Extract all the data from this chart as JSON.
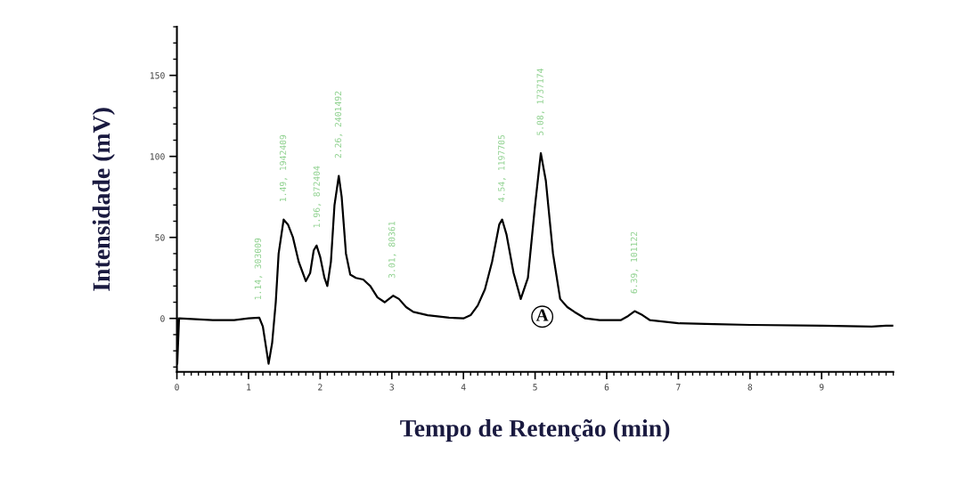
{
  "chart_data": {
    "type": "line",
    "xlabel": "Tempo de Retenção (min)",
    "ylabel": "Intensidade (mV)",
    "xlim": [
      0,
      10
    ],
    "xticks": [
      0,
      1,
      2,
      3,
      4,
      5,
      6,
      7,
      8,
      9
    ],
    "ylim": [
      -33,
      180
    ],
    "yticks": [
      0,
      50,
      100,
      150
    ],
    "grid": false,
    "marker": "none",
    "line_style": "solid",
    "series": [
      {
        "color": "#000000",
        "x": [
          0.0,
          0.005,
          0.03,
          0.5,
          0.8,
          1.0,
          1.15,
          1.2,
          1.28,
          1.33,
          1.38,
          1.42,
          1.49,
          1.55,
          1.62,
          1.7,
          1.8,
          1.86,
          1.91,
          1.95,
          2.0,
          2.06,
          2.1,
          2.15,
          2.2,
          2.26,
          2.3,
          2.36,
          2.42,
          2.5,
          2.6,
          2.7,
          2.8,
          2.9,
          3.02,
          3.1,
          3.2,
          3.3,
          3.5,
          3.8,
          4.0,
          4.1,
          4.2,
          4.3,
          4.4,
          4.5,
          4.54,
          4.6,
          4.7,
          4.8,
          4.9,
          5.0,
          5.08,
          5.15,
          5.25,
          5.35,
          5.45,
          5.55,
          5.7,
          5.9,
          6.2,
          6.3,
          6.39,
          6.5,
          6.6,
          6.8,
          7.0,
          7.5,
          8.0,
          9.0,
          9.7,
          9.9,
          10.0
        ],
        "values": [
          0,
          -28,
          0,
          -1,
          -1,
          0,
          0.5,
          -5,
          -28,
          -15,
          10,
          40,
          61,
          58,
          50,
          35,
          23,
          28,
          42,
          45,
          38,
          25,
          20,
          35,
          70,
          88,
          75,
          40,
          27,
          25,
          24,
          20,
          13,
          10,
          14,
          12,
          7,
          4,
          2,
          0.5,
          0,
          2,
          8,
          18,
          35,
          58,
          61,
          52,
          28,
          12,
          25,
          70,
          102,
          85,
          40,
          12,
          7,
          4,
          0,
          -1,
          -1,
          1.5,
          4.5,
          2,
          -1,
          -2,
          -3,
          -3.5,
          -4,
          -4.5,
          -5,
          -4.5,
          -4.5
        ]
      }
    ],
    "annotations": [
      {
        "text": "1.14, 303009",
        "x": 1.14,
        "y": 0.5
      },
      {
        "text": "1.49, 1942409",
        "x": 1.49,
        "y": 61
      },
      {
        "text": "1.96, 872404",
        "x": 1.96,
        "y": 45
      },
      {
        "text": "2.26, 2401492",
        "x": 2.26,
        "y": 88
      },
      {
        "text": "3.01, 80361",
        "x": 3.01,
        "y": 14
      },
      {
        "text": "4.54, 1197705",
        "x": 4.54,
        "y": 61
      },
      {
        "text": "5.08, 1737174",
        "x": 5.08,
        "y": 102
      },
      {
        "text": "6.39, 101122",
        "x": 6.39,
        "y": 4.5
      },
      "A"
    ]
  }
}
